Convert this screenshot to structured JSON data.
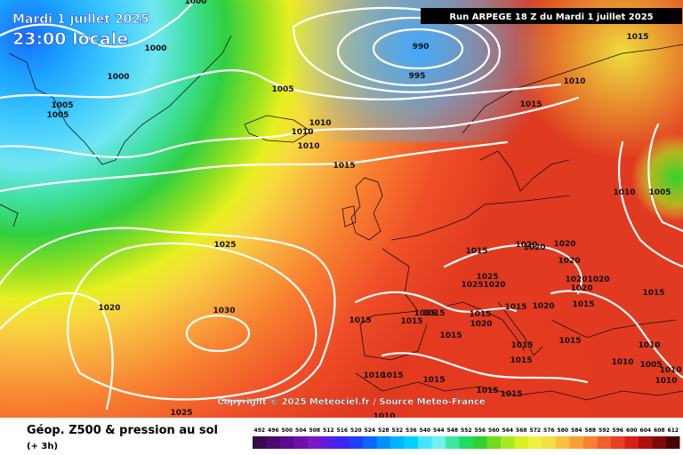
{
  "header": {
    "date": "Mardi 1 juillet 2025",
    "time": "23:00 locale",
    "run": "Run ARPEGE 18 Z du Mardi 1 juillet 2025"
  },
  "copyright": "Copyright © 2025 Meteociel.fr / Source Meteo-France",
  "footer": {
    "title": "Géop. Z500 & pression au sol",
    "step": "(+ 3h)"
  },
  "legend": {
    "labels": [
      "492",
      "496",
      "500",
      "504",
      "508",
      "512",
      "516",
      "520",
      "524",
      "528",
      "532",
      "536",
      "540",
      "544",
      "548",
      "552",
      "556",
      "560",
      "564",
      "568",
      "572",
      "576",
      "580",
      "584",
      "588",
      "592",
      "596",
      "600",
      "604",
      "608",
      "612"
    ],
    "colors": [
      "#3a0a4a",
      "#4b0a6e",
      "#5a0c8c",
      "#6e10a8",
      "#7a18c8",
      "#5a1ee0",
      "#3c28f0",
      "#1e40ff",
      "#0a66ff",
      "#0090ff",
      "#00b4ff",
      "#00d2ff",
      "#40e6ff",
      "#70f0f0",
      "#40e6a0",
      "#20dc60",
      "#30d030",
      "#70dc20",
      "#a8e820",
      "#d8f020",
      "#f0f040",
      "#f0e040",
      "#f8c040",
      "#f8a038",
      "#f88030",
      "#f06028",
      "#e84020",
      "#d82018",
      "#b01010",
      "#800808",
      "#4a0404"
    ]
  },
  "pressure_labels": [
    {
      "text": "1000"
    },
    {
      "text": "1000"
    },
    {
      "text": "1000"
    },
    {
      "text": "1005"
    },
    {
      "text": "1005"
    },
    {
      "text": "990"
    },
    {
      "text": "995"
    },
    {
      "text": "1005"
    },
    {
      "text": "1010"
    },
    {
      "text": "1010"
    },
    {
      "text": "1010"
    },
    {
      "text": "1015"
    },
    {
      "text": "1015"
    },
    {
      "text": "1015"
    },
    {
      "text": "1010"
    },
    {
      "text": "1010"
    },
    {
      "text": "1005"
    },
    {
      "text": "1025"
    },
    {
      "text": "1020"
    },
    {
      "text": "1030"
    },
    {
      "text": "1015"
    },
    {
      "text": "1020"
    },
    {
      "text": "1020"
    },
    {
      "text": "1020"
    },
    {
      "text": "1020"
    },
    {
      "text": "1025"
    },
    {
      "text": "1025"
    },
    {
      "text": "1020"
    },
    {
      "text": "1020"
    },
    {
      "text": "1020"
    },
    {
      "text": "1015"
    },
    {
      "text": "1020"
    },
    {
      "text": "1015"
    },
    {
      "text": "1015"
    },
    {
      "text": "1020"
    },
    {
      "text": "1015"
    },
    {
      "text": "1015"
    },
    {
      "text": "1015"
    },
    {
      "text": "1015"
    },
    {
      "text": "1015"
    },
    {
      "text": "1020"
    },
    {
      "text": "1015"
    },
    {
      "text": "1015"
    },
    {
      "text": "1015"
    },
    {
      "text": "1010"
    },
    {
      "text": "1010"
    },
    {
      "text": "1005"
    },
    {
      "text": "1010"
    },
    {
      "text": "1010"
    },
    {
      "text": "1015"
    },
    {
      "text": "1015"
    },
    {
      "text": "1015"
    },
    {
      "text": "1015"
    },
    {
      "text": "1010"
    },
    {
      "text": "1010"
    },
    {
      "text": "1015"
    },
    {
      "text": "1025"
    }
  ]
}
